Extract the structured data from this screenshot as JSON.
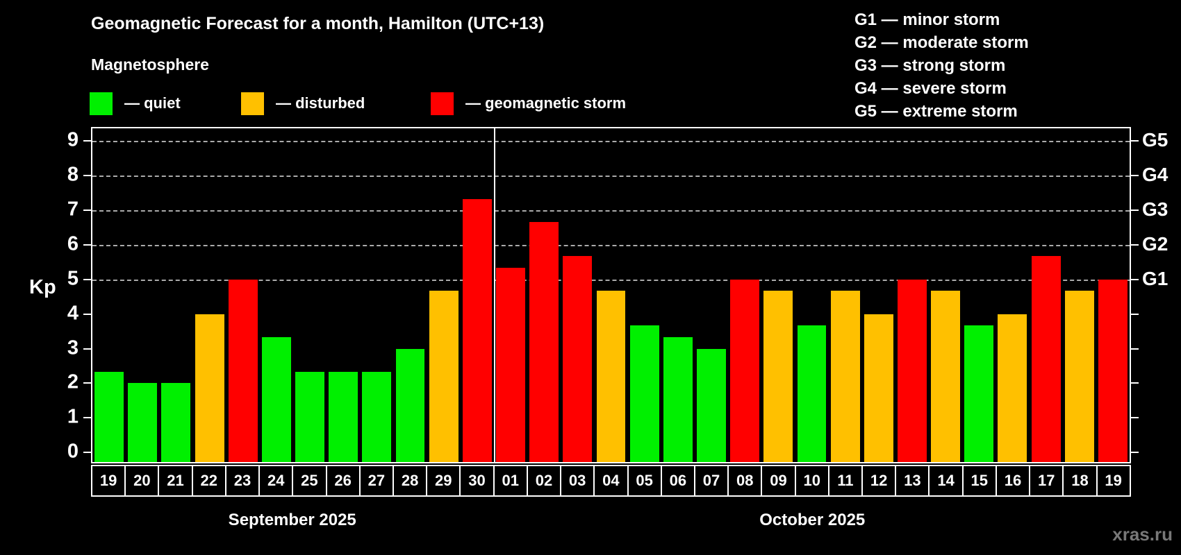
{
  "title": "Geomagnetic Forecast for a month, Hamilton (UTC+13)",
  "subtitle": "Magnetosphere",
  "legend": {
    "items": [
      {
        "key": "quiet",
        "label": "— quiet",
        "color": "#00f000"
      },
      {
        "key": "disturbed",
        "label": "— disturbed",
        "color": "#ffc000"
      },
      {
        "key": "storm",
        "label": "— geomagnetic storm",
        "color": "#ff0000"
      }
    ]
  },
  "g_scale_legend": [
    "G1 — minor storm",
    "G2 — moderate storm",
    "G3 — strong storm",
    "G4 — severe storm",
    "G5 — extreme storm"
  ],
  "watermark": "xras.ru",
  "chart_data": {
    "type": "bar",
    "title": "Geomagnetic Forecast for a month, Hamilton (UTC+13)",
    "ylabel": "Kp",
    "ylim": [
      0,
      9
    ],
    "y_ticks": [
      0,
      1,
      2,
      3,
      4,
      5,
      6,
      7,
      8,
      9
    ],
    "gridlines": [
      5,
      6,
      7,
      8,
      9
    ],
    "right_axis_labels": {
      "5": "G1",
      "6": "G2",
      "7": "G3",
      "8": "G4",
      "9": "G5"
    },
    "legend_position": "top",
    "grid": "dashed horizontal at storm levels only",
    "months": [
      {
        "label": "September 2025",
        "days": 12
      },
      {
        "label": "October 2025",
        "days": 19
      }
    ],
    "points": [
      {
        "month": "September 2025",
        "day": "19",
        "kp": 2.33,
        "level": "quiet"
      },
      {
        "month": "September 2025",
        "day": "20",
        "kp": 2.0,
        "level": "quiet"
      },
      {
        "month": "September 2025",
        "day": "21",
        "kp": 2.0,
        "level": "quiet"
      },
      {
        "month": "September 2025",
        "day": "22",
        "kp": 4.0,
        "level": "disturbed"
      },
      {
        "month": "September 2025",
        "day": "23",
        "kp": 5.0,
        "level": "storm"
      },
      {
        "month": "September 2025",
        "day": "24",
        "kp": 3.33,
        "level": "quiet"
      },
      {
        "month": "September 2025",
        "day": "25",
        "kp": 2.33,
        "level": "quiet"
      },
      {
        "month": "September 2025",
        "day": "26",
        "kp": 2.33,
        "level": "quiet"
      },
      {
        "month": "September 2025",
        "day": "27",
        "kp": 2.33,
        "level": "quiet"
      },
      {
        "month": "September 2025",
        "day": "28",
        "kp": 3.0,
        "level": "quiet"
      },
      {
        "month": "September 2025",
        "day": "29",
        "kp": 4.67,
        "level": "disturbed"
      },
      {
        "month": "September 2025",
        "day": "30",
        "kp": 7.33,
        "level": "storm"
      },
      {
        "month": "October 2025",
        "day": "01",
        "kp": 5.33,
        "level": "storm"
      },
      {
        "month": "October 2025",
        "day": "02",
        "kp": 6.67,
        "level": "storm"
      },
      {
        "month": "October 2025",
        "day": "03",
        "kp": 5.67,
        "level": "storm"
      },
      {
        "month": "October 2025",
        "day": "04",
        "kp": 4.67,
        "level": "disturbed"
      },
      {
        "month": "October 2025",
        "day": "05",
        "kp": 3.67,
        "level": "quiet"
      },
      {
        "month": "October 2025",
        "day": "06",
        "kp": 3.33,
        "level": "quiet"
      },
      {
        "month": "October 2025",
        "day": "07",
        "kp": 3.0,
        "level": "quiet"
      },
      {
        "month": "October 2025",
        "day": "08",
        "kp": 5.0,
        "level": "storm"
      },
      {
        "month": "October 2025",
        "day": "09",
        "kp": 4.67,
        "level": "disturbed"
      },
      {
        "month": "October 2025",
        "day": "10",
        "kp": 3.67,
        "level": "quiet"
      },
      {
        "month": "October 2025",
        "day": "11",
        "kp": 4.67,
        "level": "disturbed"
      },
      {
        "month": "October 2025",
        "day": "12",
        "kp": 4.0,
        "level": "disturbed"
      },
      {
        "month": "October 2025",
        "day": "13",
        "kp": 5.0,
        "level": "storm"
      },
      {
        "month": "October 2025",
        "day": "14",
        "kp": 4.67,
        "level": "disturbed"
      },
      {
        "month": "October 2025",
        "day": "15",
        "kp": 3.67,
        "level": "quiet"
      },
      {
        "month": "October 2025",
        "day": "16",
        "kp": 4.0,
        "level": "disturbed"
      },
      {
        "month": "October 2025",
        "day": "17",
        "kp": 5.67,
        "level": "storm"
      },
      {
        "month": "October 2025",
        "day": "18",
        "kp": 4.67,
        "level": "disturbed"
      },
      {
        "month": "October 2025",
        "day": "19",
        "kp": 5.0,
        "level": "storm"
      }
    ]
  }
}
